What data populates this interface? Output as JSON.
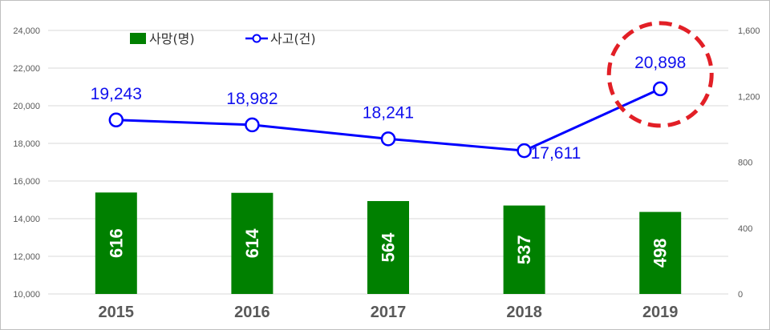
{
  "chart_data": {
    "type": "bar",
    "categories": [
      "2015",
      "2016",
      "2017",
      "2018",
      "2019"
    ],
    "series": [
      {
        "name": "사망(명)",
        "type": "bar",
        "axis": "right",
        "color": "#008000",
        "values": [
          616,
          614,
          564,
          537,
          498
        ],
        "labels": [
          "616",
          "614",
          "564",
          "537",
          "498"
        ]
      },
      {
        "name": "사고(건)",
        "type": "line",
        "axis": "left",
        "color": "#0000ff",
        "values": [
          19243,
          18982,
          18241,
          17611,
          20898
        ],
        "labels": [
          "19,243",
          "18,982",
          "18,241",
          "17,611",
          "20,898"
        ]
      }
    ],
    "y_left": {
      "lim": [
        10000,
        24000
      ],
      "ticks": [
        10000,
        12000,
        14000,
        16000,
        18000,
        20000,
        22000,
        24000
      ],
      "tick_labels": [
        "10,000",
        "12,000",
        "14,000",
        "16,000",
        "18,000",
        "20,000",
        "22,000",
        "24,000"
      ]
    },
    "y_right": {
      "lim": [
        0,
        1600
      ],
      "ticks": [
        0,
        400,
        800,
        1200,
        1600
      ],
      "tick_labels": [
        "0",
        "400",
        "800",
        "1,200",
        "1,600"
      ]
    },
    "grid": true,
    "legend": "top-left",
    "highlight": {
      "category": "2019",
      "series": "사고(건)",
      "style": "red dashed circle",
      "color": "#e21f26"
    }
  }
}
